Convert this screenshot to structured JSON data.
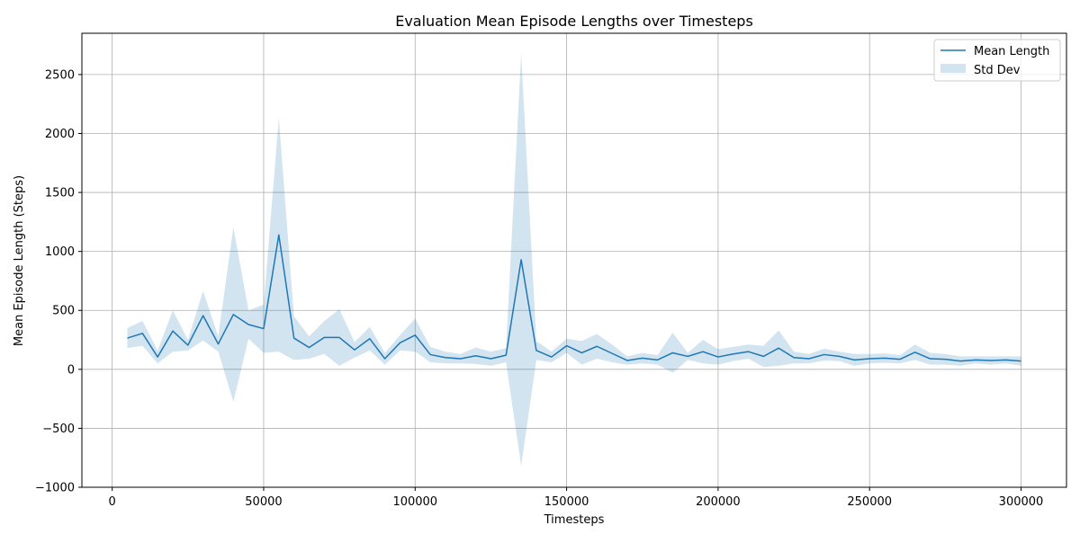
{
  "chart_data": {
    "type": "line",
    "title": "Evaluation Mean Episode Lengths over Timesteps",
    "xlabel": "Timesteps",
    "ylabel": "Mean Episode Length (Steps)",
    "xlim": [
      -10000,
      315000
    ],
    "ylim": [
      -1000,
      2850
    ],
    "xticks": [
      0,
      50000,
      100000,
      150000,
      200000,
      250000,
      300000
    ],
    "yticks": [
      -1000,
      -500,
      0,
      500,
      1000,
      1500,
      2000,
      2500
    ],
    "xtick_labels": [
      "0",
      "50000",
      "100000",
      "150000",
      "200000",
      "250000",
      "300000"
    ],
    "ytick_labels": [
      "−1000",
      "−500",
      "0",
      "500",
      "1000",
      "1500",
      "2000",
      "2500"
    ],
    "grid": true,
    "legend_position": "top-right",
    "colors": {
      "line": "#1f77b4",
      "band": "#1f77b4",
      "band_opacity": 0.2
    },
    "x": [
      5000,
      10000,
      15000,
      20000,
      25000,
      30000,
      35000,
      40000,
      45000,
      50000,
      55000,
      60000,
      65000,
      70000,
      75000,
      80000,
      85000,
      90000,
      95000,
      100000,
      105000,
      110000,
      115000,
      120000,
      125000,
      130000,
      135000,
      140000,
      145000,
      150000,
      155000,
      160000,
      165000,
      170000,
      175000,
      180000,
      185000,
      190000,
      195000,
      200000,
      205000,
      210000,
      215000,
      220000,
      225000,
      230000,
      235000,
      240000,
      245000,
      250000,
      255000,
      260000,
      265000,
      270000,
      275000,
      280000,
      285000,
      290000,
      295000,
      300000
    ],
    "series": [
      {
        "name": "Mean Length",
        "values": [
          265,
          305,
          105,
          325,
          205,
          455,
          215,
          465,
          380,
          345,
          1140,
          265,
          185,
          270,
          270,
          165,
          260,
          90,
          225,
          290,
          125,
          100,
          90,
          115,
          90,
          120,
          930,
          160,
          105,
          200,
          140,
          195,
          135,
          75,
          95,
          80,
          140,
          110,
          150,
          105,
          130,
          150,
          110,
          180,
          100,
          90,
          125,
          110,
          80,
          90,
          95,
          85,
          145,
          90,
          85,
          70,
          80,
          75,
          80,
          70
        ]
      }
    ],
    "std_band": {
      "name": "Std Dev",
      "upper": [
        350,
        410,
        160,
        500,
        250,
        665,
        280,
        1205,
        500,
        550,
        2130,
        450,
        280,
        410,
        510,
        230,
        360,
        140,
        290,
        430,
        190,
        150,
        130,
        185,
        150,
        180,
        2680,
        240,
        150,
        260,
        240,
        300,
        210,
        110,
        140,
        120,
        310,
        140,
        250,
        170,
        190,
        210,
        200,
        330,
        150,
        130,
        175,
        150,
        130,
        130,
        135,
        120,
        210,
        140,
        130,
        110,
        110,
        110,
        110,
        110
      ]
    },
    "legend": [
      "Mean Length",
      "Std Dev"
    ]
  }
}
